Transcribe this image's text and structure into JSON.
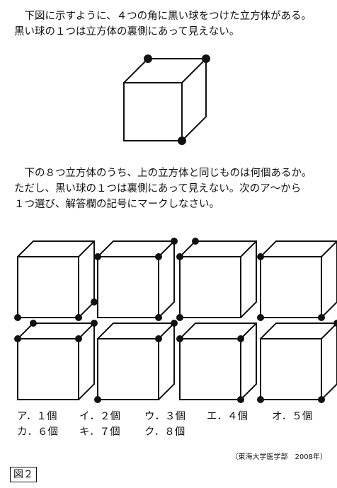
{
  "intro": {
    "lines": [
      "　下図に示すように、４つの角に黒い球をつけた立方体がある。",
      "黒い球の１つは立方体の裏側にあって見えない。"
    ]
  },
  "question": {
    "lines": [
      "　下の８つ立方体のうち、上の立方体と同じものは何個あるか。",
      "ただし、黒い球の１つは裏側にあって見えない。次のア～から",
      "１つ選び、解答欄の記号にマークしなさい。"
    ]
  },
  "choices": [
    {
      "label": "ア．１個"
    },
    {
      "label": "イ．２個"
    },
    {
      "label": "ウ．３個"
    },
    {
      "label": "エ．４個"
    },
    {
      "label": "オ．５個"
    },
    {
      "label": "カ．６個"
    },
    {
      "label": "キ．７個"
    },
    {
      "label": "ク．８個"
    }
  ],
  "source": "（東海大学医学部　2008年）",
  "figure_label": "図２",
  "cubes": {
    "reference": {
      "balls": [
        "back-top-left",
        "back-top-right",
        "front-bottom-right"
      ]
    },
    "options": [
      {
        "balls": [
          "front-bottom-left",
          "front-bottom-right",
          "back-bottom-right"
        ]
      },
      {
        "balls": [
          "front-top-left",
          "front-top-right",
          "back-top-right",
          "front-bottom-right"
        ]
      },
      {
        "balls": [
          "back-top-left",
          "front-top-left",
          "front-bottom-left"
        ]
      },
      {
        "balls": [
          "front-top-left",
          "front-bottom-left",
          "front-bottom-right"
        ]
      },
      {
        "balls": [
          "front-top-left",
          "back-top-left",
          "back-top-right",
          "front-top-right"
        ]
      },
      {
        "balls": [
          "back-top-right",
          "front-top-right",
          "front-bottom-left"
        ]
      },
      {
        "balls": [
          "front-top-left",
          "front-top-right",
          "front-bottom-right"
        ]
      },
      {
        "balls": [
          "back-top-right",
          "front-bottom-left",
          "front-bottom-right"
        ]
      }
    ]
  }
}
